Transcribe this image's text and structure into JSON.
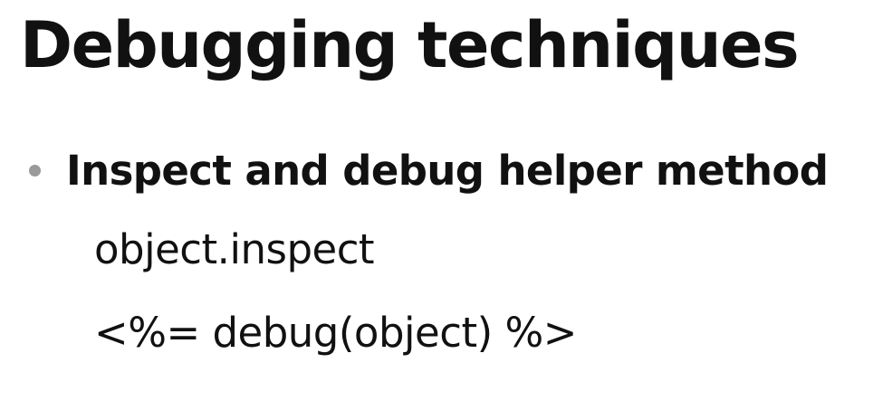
{
  "slide": {
    "title": "Debugging techniques",
    "bullets": [
      {
        "text": "Inspect and debug helper method",
        "code_lines": [
          "object.inspect",
          "<%= debug(object) %>"
        ]
      }
    ]
  },
  "colors": {
    "background": "#ffffff",
    "text": "#111111",
    "bullet": "#9a9a9a"
  }
}
